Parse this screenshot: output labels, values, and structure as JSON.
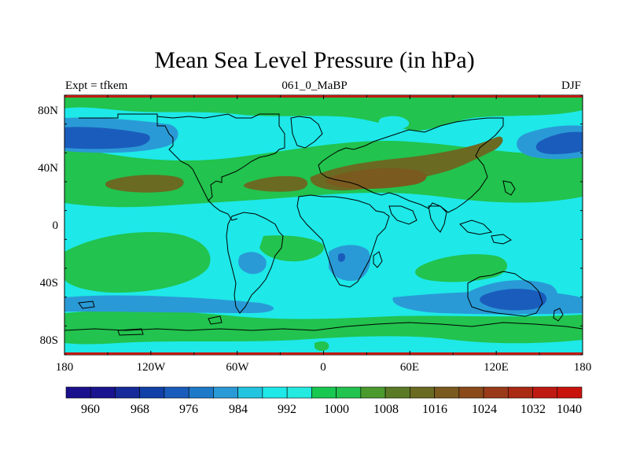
{
  "title": "Mean Sea Level Pressure (in hPa)",
  "left_label": "Expt = tfkem",
  "center_label": "061_0_MaBP",
  "right_label": "DJF",
  "lon_ticks": [
    "180",
    "120W",
    "60W",
    "0",
    "60E",
    "120E",
    "180"
  ],
  "lat_ticks": [
    "80N",
    "40N",
    "0",
    "40S",
    "80S"
  ],
  "colorbar": {
    "colors": [
      "#1a0f8c",
      "#19138f",
      "#162a9a",
      "#1040a8",
      "#1a5cbc",
      "#1e79c8",
      "#2a9ad6",
      "#22c4e0",
      "#1ee8e8",
      "#24eae0",
      "#18c850",
      "#22c34e",
      "#4a9a2e",
      "#5a7a26",
      "#6a6a22",
      "#7a5a1e",
      "#8a4a1a",
      "#9a3a18",
      "#aa2a14",
      "#bf1a12",
      "#c9140e"
    ],
    "labels": [
      "960",
      "968",
      "976",
      "984",
      "992",
      "1000",
      "1008",
      "1016",
      "1024",
      "1032",
      "1040"
    ]
  },
  "map": {
    "palette": {
      "deep_blue": "#1a5cbc",
      "mid_blue": "#2a9ad6",
      "cyan": "#1ee8e8",
      "green": "#22c34e",
      "olive": "#6a6a22",
      "brown": "#7a5a1e"
    }
  }
}
